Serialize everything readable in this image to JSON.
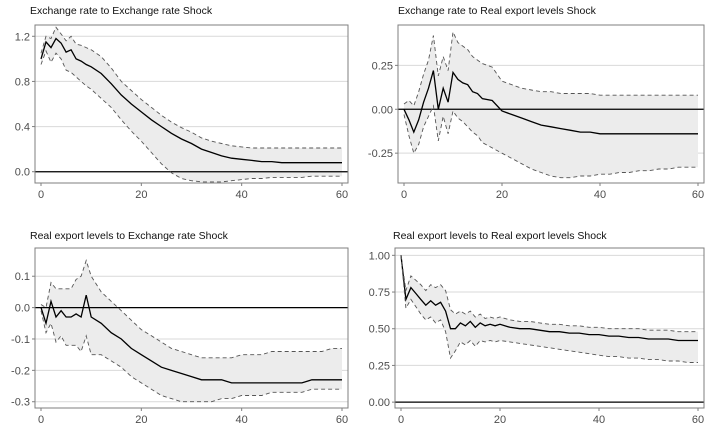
{
  "chart_data": [
    {
      "type": "line",
      "title": "Exchange rate to Exchange rate Shock",
      "x_ticks": [
        0,
        20,
        40,
        60
      ],
      "y_ticks": [
        0.0,
        0.4,
        0.8,
        1.2
      ],
      "y_tick_labels": [
        "0.0",
        "0.4",
        "0.8",
        "1.2"
      ],
      "xlim": [
        0,
        60
      ],
      "ylim": [
        -0.1,
        1.3
      ],
      "zero_line": true,
      "grid": "horizontal",
      "series": [
        {
          "role": "response",
          "style": "solid",
          "x": [
            0,
            1,
            2,
            3,
            4,
            5,
            6,
            7,
            8,
            9,
            10,
            12,
            14,
            16,
            18,
            20,
            22,
            24,
            26,
            28,
            30,
            32,
            34,
            36,
            38,
            40,
            42,
            44,
            46,
            48,
            50,
            52,
            54,
            56,
            58,
            60
          ],
          "y": [
            1.0,
            1.15,
            1.1,
            1.18,
            1.14,
            1.06,
            1.08,
            1.0,
            0.98,
            0.95,
            0.93,
            0.87,
            0.78,
            0.68,
            0.6,
            0.53,
            0.46,
            0.4,
            0.34,
            0.29,
            0.25,
            0.2,
            0.17,
            0.14,
            0.12,
            0.11,
            0.1,
            0.09,
            0.09,
            0.08,
            0.08,
            0.08,
            0.08,
            0.08,
            0.08,
            0.08
          ]
        },
        {
          "role": "upper band",
          "style": "dashed",
          "x": [
            0,
            1,
            2,
            3,
            4,
            5,
            6,
            7,
            8,
            9,
            10,
            12,
            14,
            16,
            18,
            20,
            22,
            24,
            26,
            28,
            30,
            32,
            34,
            36,
            38,
            40,
            42,
            44,
            46,
            48,
            50,
            52,
            54,
            56,
            58,
            60
          ],
          "y": [
            1.05,
            1.2,
            1.18,
            1.28,
            1.22,
            1.16,
            1.2,
            1.13,
            1.12,
            1.1,
            1.08,
            1.02,
            0.92,
            0.8,
            0.72,
            0.64,
            0.57,
            0.5,
            0.44,
            0.39,
            0.35,
            0.3,
            0.27,
            0.25,
            0.23,
            0.22,
            0.21,
            0.21,
            0.21,
            0.21,
            0.21,
            0.21,
            0.21,
            0.21,
            0.21,
            0.21
          ]
        },
        {
          "role": "lower band",
          "style": "dashed",
          "x": [
            0,
            1,
            2,
            3,
            4,
            5,
            6,
            7,
            8,
            9,
            10,
            12,
            14,
            16,
            18,
            20,
            22,
            24,
            26,
            28,
            30,
            32,
            34,
            36,
            38,
            40,
            42,
            44,
            46,
            48,
            50,
            52,
            54,
            56,
            58,
            60
          ],
          "y": [
            0.95,
            1.07,
            0.97,
            1.05,
            1.0,
            0.9,
            0.88,
            0.84,
            0.8,
            0.76,
            0.73,
            0.65,
            0.57,
            0.46,
            0.36,
            0.27,
            0.17,
            0.07,
            -0.01,
            -0.06,
            -0.08,
            -0.09,
            -0.09,
            -0.09,
            -0.08,
            -0.07,
            -0.06,
            -0.06,
            -0.05,
            -0.05,
            -0.05,
            -0.05,
            -0.04,
            -0.04,
            -0.04,
            -0.04
          ]
        }
      ]
    },
    {
      "type": "line",
      "title": "Exchange rate to Real export levels Shock",
      "x_ticks": [
        0,
        20,
        40,
        60
      ],
      "y_ticks": [
        -0.25,
        0.0,
        0.25
      ],
      "y_tick_labels": [
        "-0.25",
        "0.00",
        "0.25"
      ],
      "xlim": [
        0,
        60
      ],
      "ylim": [
        -0.42,
        0.48
      ],
      "zero_line": true,
      "grid": "horizontal",
      "series": [
        {
          "role": "response",
          "style": "solid",
          "x": [
            0,
            1,
            2,
            3,
            4,
            5,
            6,
            7,
            8,
            9,
            10,
            11,
            12,
            13,
            14,
            15,
            16,
            18,
            20,
            22,
            24,
            26,
            28,
            30,
            32,
            34,
            36,
            38,
            40,
            42,
            44,
            46,
            48,
            50,
            52,
            54,
            56,
            58,
            60
          ],
          "y": [
            0.0,
            -0.06,
            -0.13,
            -0.06,
            0.04,
            0.12,
            0.22,
            0.0,
            0.12,
            0.04,
            0.21,
            0.17,
            0.15,
            0.14,
            0.1,
            0.09,
            0.06,
            0.05,
            -0.01,
            -0.03,
            -0.05,
            -0.07,
            -0.09,
            -0.1,
            -0.11,
            -0.12,
            -0.13,
            -0.13,
            -0.14,
            -0.14,
            -0.14,
            -0.14,
            -0.14,
            -0.14,
            -0.14,
            -0.14,
            -0.14,
            -0.14,
            -0.14
          ]
        },
        {
          "role": "upper band",
          "style": "dashed",
          "x": [
            0,
            1,
            2,
            3,
            4,
            5,
            6,
            7,
            8,
            9,
            10,
            11,
            12,
            13,
            14,
            15,
            16,
            18,
            20,
            22,
            24,
            26,
            28,
            30,
            32,
            34,
            36,
            38,
            40,
            42,
            44,
            46,
            48,
            50,
            52,
            54,
            56,
            58,
            60
          ],
          "y": [
            0.03,
            0.05,
            0.02,
            0.1,
            0.2,
            0.28,
            0.42,
            0.19,
            0.3,
            0.22,
            0.44,
            0.38,
            0.36,
            0.34,
            0.3,
            0.28,
            0.26,
            0.24,
            0.16,
            0.14,
            0.12,
            0.11,
            0.1,
            0.1,
            0.09,
            0.09,
            0.09,
            0.09,
            0.08,
            0.08,
            0.08,
            0.08,
            0.08,
            0.08,
            0.08,
            0.08,
            0.08,
            0.08,
            0.08
          ]
        },
        {
          "role": "lower band",
          "style": "dashed",
          "x": [
            0,
            1,
            2,
            3,
            4,
            5,
            6,
            7,
            8,
            9,
            10,
            11,
            12,
            13,
            14,
            15,
            16,
            18,
            20,
            22,
            24,
            26,
            28,
            30,
            32,
            34,
            36,
            38,
            40,
            42,
            44,
            46,
            48,
            50,
            52,
            54,
            56,
            58,
            60
          ],
          "y": [
            -0.03,
            -0.15,
            -0.25,
            -0.2,
            -0.1,
            -0.04,
            0.02,
            -0.18,
            -0.04,
            -0.14,
            -0.01,
            -0.05,
            -0.07,
            -0.1,
            -0.13,
            -0.15,
            -0.19,
            -0.22,
            -0.25,
            -0.28,
            -0.31,
            -0.34,
            -0.36,
            -0.38,
            -0.39,
            -0.39,
            -0.38,
            -0.38,
            -0.37,
            -0.37,
            -0.36,
            -0.36,
            -0.35,
            -0.35,
            -0.34,
            -0.34,
            -0.33,
            -0.33,
            -0.33
          ]
        }
      ]
    },
    {
      "type": "line",
      "title": "Real export levels to Exchange rate Shock",
      "x_ticks": [
        0,
        20,
        40,
        60
      ],
      "y_ticks": [
        -0.3,
        -0.2,
        -0.1,
        0.0,
        0.1
      ],
      "y_tick_labels": [
        "-0.3",
        "-0.2",
        "-0.1",
        "0.0",
        "0.1"
      ],
      "xlim": [
        0,
        60
      ],
      "ylim": [
        -0.32,
        0.19
      ],
      "zero_line": true,
      "grid": "horizontal",
      "series": [
        {
          "role": "response",
          "style": "solid",
          "x": [
            0,
            1,
            2,
            3,
            4,
            5,
            6,
            7,
            8,
            9,
            10,
            12,
            14,
            16,
            18,
            20,
            22,
            24,
            26,
            28,
            30,
            32,
            34,
            36,
            38,
            40,
            42,
            44,
            46,
            48,
            50,
            52,
            54,
            56,
            58,
            60
          ],
          "y": [
            0.0,
            -0.05,
            0.02,
            -0.03,
            -0.01,
            -0.03,
            -0.03,
            -0.02,
            -0.03,
            0.04,
            -0.03,
            -0.05,
            -0.08,
            -0.1,
            -0.13,
            -0.15,
            -0.17,
            -0.19,
            -0.2,
            -0.21,
            -0.22,
            -0.23,
            -0.23,
            -0.23,
            -0.24,
            -0.24,
            -0.24,
            -0.24,
            -0.24,
            -0.24,
            -0.24,
            -0.24,
            -0.23,
            -0.23,
            -0.23,
            -0.23
          ]
        },
        {
          "role": "upper band",
          "style": "dashed",
          "x": [
            0,
            1,
            2,
            3,
            4,
            5,
            6,
            7,
            8,
            9,
            10,
            12,
            14,
            16,
            18,
            20,
            22,
            24,
            26,
            28,
            30,
            32,
            34,
            36,
            38,
            40,
            42,
            44,
            46,
            48,
            50,
            52,
            54,
            56,
            58,
            60
          ],
          "y": [
            0.01,
            0.0,
            0.08,
            0.06,
            0.06,
            0.06,
            0.06,
            0.09,
            0.1,
            0.15,
            0.1,
            0.05,
            0.02,
            -0.01,
            -0.04,
            -0.07,
            -0.09,
            -0.11,
            -0.13,
            -0.14,
            -0.15,
            -0.16,
            -0.16,
            -0.16,
            -0.16,
            -0.15,
            -0.15,
            -0.15,
            -0.14,
            -0.14,
            -0.14,
            -0.14,
            -0.14,
            -0.14,
            -0.13,
            -0.13
          ]
        },
        {
          "role": "lower band",
          "style": "dashed",
          "x": [
            0,
            1,
            2,
            3,
            4,
            5,
            6,
            7,
            8,
            9,
            10,
            12,
            14,
            16,
            18,
            20,
            22,
            24,
            26,
            28,
            30,
            32,
            34,
            36,
            38,
            40,
            42,
            44,
            46,
            48,
            50,
            52,
            54,
            56,
            58,
            60
          ],
          "y": [
            -0.01,
            -0.08,
            -0.05,
            -0.11,
            -0.09,
            -0.12,
            -0.12,
            -0.12,
            -0.14,
            -0.09,
            -0.15,
            -0.15,
            -0.17,
            -0.19,
            -0.22,
            -0.24,
            -0.26,
            -0.28,
            -0.29,
            -0.3,
            -0.3,
            -0.3,
            -0.3,
            -0.29,
            -0.29,
            -0.28,
            -0.28,
            -0.28,
            -0.27,
            -0.27,
            -0.27,
            -0.27,
            -0.26,
            -0.26,
            -0.26,
            -0.26
          ]
        }
      ]
    },
    {
      "type": "line",
      "title": "Real export levels to Real export levels Shock",
      "x_ticks": [
        0,
        20,
        40,
        60
      ],
      "y_ticks": [
        0.0,
        0.25,
        0.5,
        0.75,
        1.0
      ],
      "y_tick_labels": [
        "0.00",
        "0.25",
        "0.50",
        "0.75",
        "1.00"
      ],
      "xlim": [
        0,
        60
      ],
      "ylim": [
        -0.04,
        1.05
      ],
      "zero_line": true,
      "grid": "horizontal",
      "series": [
        {
          "role": "response",
          "style": "solid",
          "x": [
            0,
            1,
            2,
            3,
            4,
            5,
            6,
            7,
            8,
            9,
            10,
            11,
            12,
            13,
            14,
            15,
            16,
            17,
            18,
            19,
            20,
            22,
            24,
            26,
            28,
            30,
            32,
            34,
            36,
            38,
            40,
            42,
            44,
            46,
            48,
            50,
            52,
            54,
            56,
            58,
            60
          ],
          "y": [
            1.0,
            0.7,
            0.78,
            0.74,
            0.7,
            0.66,
            0.69,
            0.66,
            0.68,
            0.62,
            0.5,
            0.5,
            0.54,
            0.52,
            0.55,
            0.51,
            0.54,
            0.52,
            0.53,
            0.52,
            0.53,
            0.51,
            0.5,
            0.5,
            0.49,
            0.48,
            0.48,
            0.47,
            0.47,
            0.46,
            0.46,
            0.45,
            0.45,
            0.44,
            0.44,
            0.43,
            0.43,
            0.43,
            0.42,
            0.42,
            0.42
          ]
        },
        {
          "role": "upper band",
          "style": "dashed",
          "x": [
            0,
            1,
            2,
            3,
            4,
            5,
            6,
            7,
            8,
            9,
            10,
            11,
            12,
            13,
            14,
            15,
            16,
            17,
            18,
            19,
            20,
            22,
            24,
            26,
            28,
            30,
            32,
            34,
            36,
            38,
            40,
            42,
            44,
            46,
            48,
            50,
            52,
            54,
            56,
            58,
            60
          ],
          "y": [
            1.0,
            0.76,
            0.86,
            0.83,
            0.8,
            0.76,
            0.8,
            0.78,
            0.8,
            0.76,
            0.63,
            0.6,
            0.62,
            0.6,
            0.62,
            0.58,
            0.6,
            0.57,
            0.58,
            0.57,
            0.58,
            0.56,
            0.55,
            0.55,
            0.54,
            0.53,
            0.53,
            0.52,
            0.52,
            0.51,
            0.51,
            0.5,
            0.5,
            0.5,
            0.5,
            0.49,
            0.49,
            0.49,
            0.48,
            0.48,
            0.48
          ]
        },
        {
          "role": "lower band",
          "style": "dashed",
          "x": [
            0,
            1,
            2,
            3,
            4,
            5,
            6,
            7,
            8,
            9,
            10,
            11,
            12,
            13,
            14,
            15,
            16,
            17,
            18,
            19,
            20,
            22,
            24,
            26,
            28,
            30,
            32,
            34,
            36,
            38,
            40,
            42,
            44,
            46,
            48,
            50,
            52,
            54,
            56,
            58,
            60
          ],
          "y": [
            1.0,
            0.64,
            0.7,
            0.65,
            0.6,
            0.56,
            0.58,
            0.54,
            0.56,
            0.48,
            0.3,
            0.35,
            0.41,
            0.39,
            0.42,
            0.38,
            0.42,
            0.41,
            0.42,
            0.41,
            0.42,
            0.41,
            0.4,
            0.39,
            0.38,
            0.37,
            0.36,
            0.35,
            0.34,
            0.33,
            0.32,
            0.31,
            0.31,
            0.3,
            0.3,
            0.29,
            0.29,
            0.28,
            0.28,
            0.27,
            0.27
          ]
        }
      ]
    }
  ],
  "colors": {
    "line": "#000000",
    "band_fill": "#ececec",
    "band_edge": "#555555",
    "grid": "#d9d9d9",
    "zero_line": "#000000",
    "axis_text": "#4d4d4d"
  }
}
